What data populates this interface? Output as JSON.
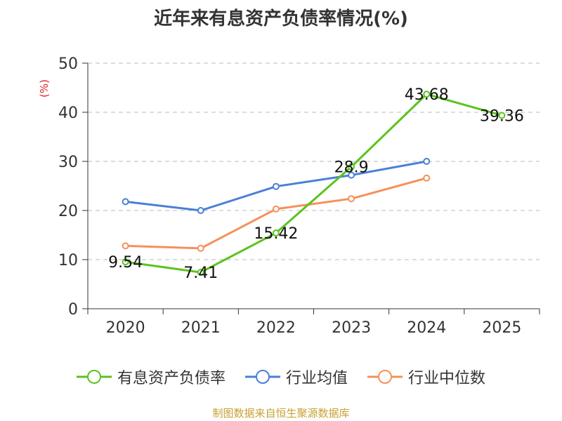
{
  "title": "近年来有息资产负债率情况(%)",
  "source": "制图数据来自恒生聚源数据库",
  "chart_data": {
    "type": "line",
    "title": "近年来有息资产负债率情况(%)",
    "ylabel": "(%)",
    "ylim": [
      0,
      50
    ],
    "yticks": [
      0,
      10,
      20,
      30,
      40,
      50
    ],
    "grid": true,
    "legend_position": "bottom",
    "categories": [
      "2020",
      "2021",
      "2022",
      "2023",
      "2024",
      "2025"
    ],
    "series": [
      {
        "name": "有息资产负债率",
        "color": "#5cc220",
        "values": [
          9.54,
          7.41,
          15.42,
          28.9,
          43.68,
          39.36
        ],
        "labels": [
          "9.54",
          "7.41",
          "15.42",
          "28.9",
          "43.68",
          "39.36"
        ]
      },
      {
        "name": "行业均值",
        "color": "#4a7fd8",
        "values": [
          21.8,
          20.0,
          24.9,
          27.2,
          30.0,
          null
        ]
      },
      {
        "name": "行业中位数",
        "color": "#f6905a",
        "values": [
          12.8,
          12.3,
          20.3,
          22.4,
          26.6,
          null
        ]
      }
    ]
  }
}
